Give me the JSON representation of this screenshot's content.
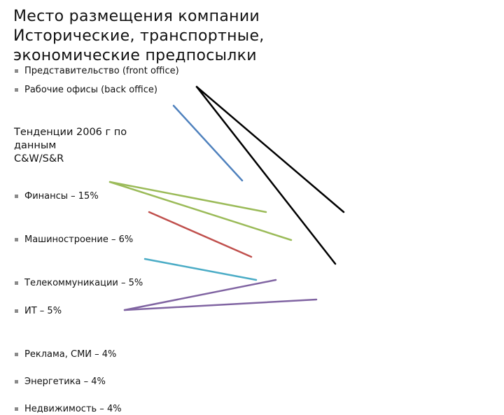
{
  "title": {
    "line1": "Место размещения компании",
    "line2": "Исторические, транспортные,",
    "line3": "экономические предпосылки"
  },
  "offices": [
    {
      "label": "Представительство (front office)"
    },
    {
      "label": "Рабочие офисы (back office)"
    }
  ],
  "trends": {
    "heading_line1": "Тенденции 2006 г по",
    "heading_line2": "данным",
    "heading_line3": "C&W/S&R"
  },
  "sectors": [
    {
      "label": "Финансы – 15%"
    },
    {
      "label": "Машиностроение – 6%"
    },
    {
      "label": "Телекоммуникации – 5%"
    },
    {
      "label": "ИТ – 5%"
    },
    {
      "label": "Реклама, СМИ – 4%"
    },
    {
      "label": "Энергетика – 4%"
    },
    {
      "label": "Недвижимость – 4%"
    }
  ],
  "colors": {
    "bullet": "#8a8a8a",
    "line_black": "#000000",
    "line_blue": "#4f81bd",
    "line_green": "#9bbb59",
    "line_red": "#c0504d",
    "line_cyan": "#4bacc6",
    "line_purple": "#8064a2"
  }
}
